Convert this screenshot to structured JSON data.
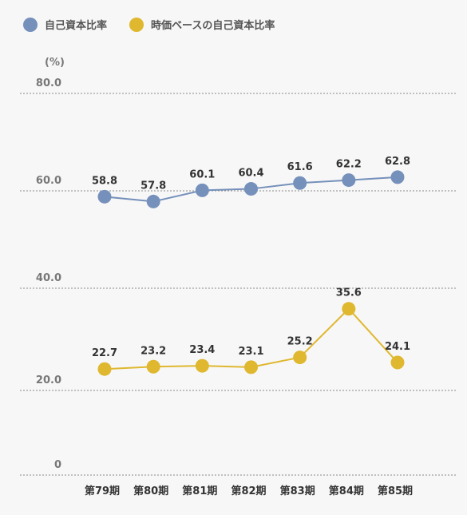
{
  "chart_data": {
    "type": "line",
    "unit_label": "(%)",
    "categories": [
      "第79期",
      "第80期",
      "第81期",
      "第82期",
      "第83期",
      "第84期",
      "第85期"
    ],
    "y_tick_labels": [
      "0",
      "20.0",
      "40.0",
      "60.0",
      "80.0"
    ],
    "series": [
      {
        "name": "自己資本比率",
        "values": [
          58.8,
          57.8,
          60.1,
          60.4,
          61.6,
          62.2,
          62.8
        ],
        "labels": [
          "58.8",
          "57.8",
          "60.1",
          "60.4",
          "61.6",
          "62.2",
          "62.8"
        ],
        "color": "#7590bb"
      },
      {
        "name": "時価ベースの自己資本比率",
        "values": [
          22.7,
          23.2,
          23.4,
          23.1,
          25.2,
          35.6,
          24.1
        ],
        "labels": [
          "22.7",
          "23.2",
          "23.4",
          "23.1",
          "25.2",
          "35.6",
          "24.1"
        ],
        "color": "#dfb82f"
      }
    ],
    "grid": true,
    "legend_position": "top-left"
  }
}
